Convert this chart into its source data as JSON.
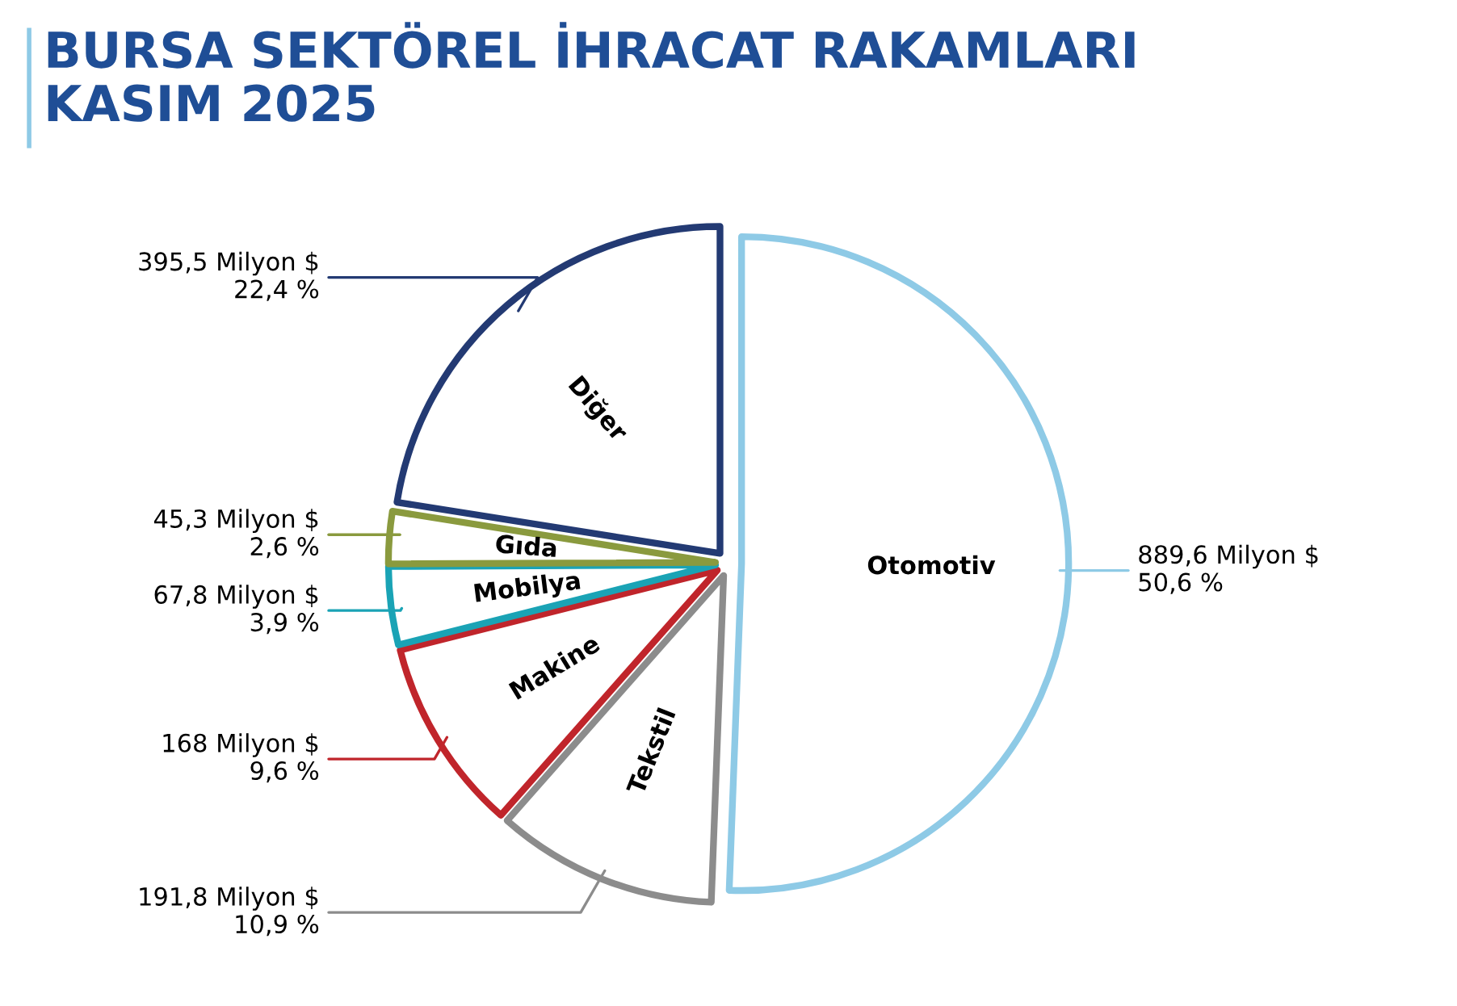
{
  "chart_data": {
    "type": "pie",
    "title": "BURSA SEKTÖREL İHRACAT RAKAMLARI\nKASIM 2025",
    "categories": [
      "Otomotiv",
      "Tekstil",
      "Makine",
      "Mobilya",
      "Gıda",
      "Diğer"
    ],
    "values": [
      889.6,
      191.8,
      168,
      67.8,
      45.3,
      395.5
    ],
    "colors": [
      "#8ecae6",
      "#8c8c8c",
      "#c0252b",
      "#1aa3b5",
      "#8a9a3e",
      "#233a73"
    ],
    "value_labels": [
      "889,6 Milyon $\n50,6 %",
      "191,8 Milyon $\n10,9 %",
      "168 Milyon $\n9,6 %",
      "67,8 Milyon $\n3,9 %",
      "45,3 Milyon $\n2,6 %",
      "395,5 Milyon $\n22,4 %"
    ]
  }
}
